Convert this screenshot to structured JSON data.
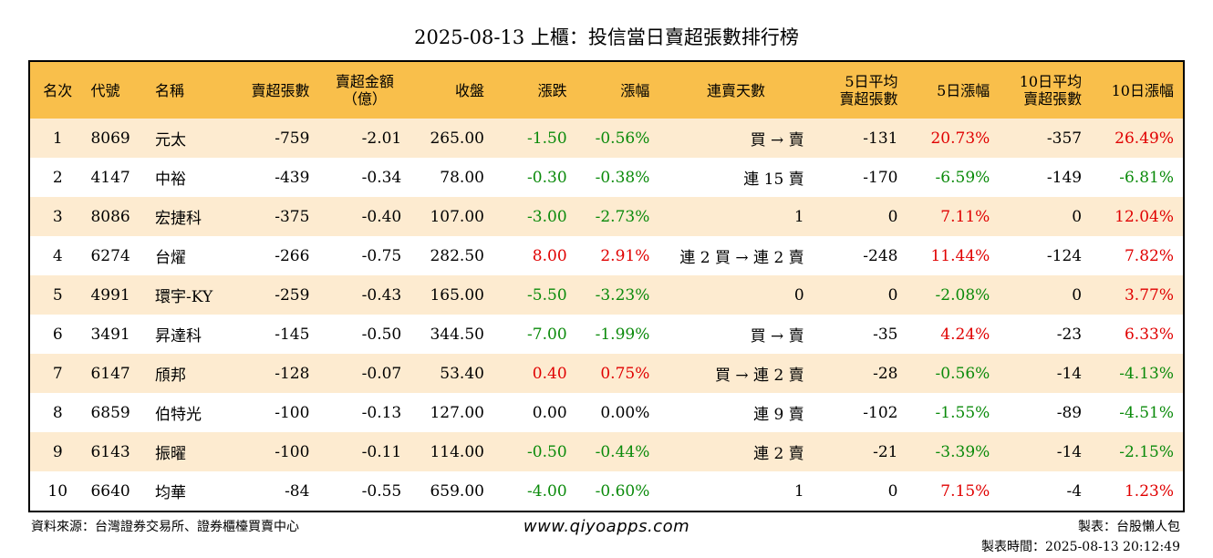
{
  "title": "2025-08-13 上櫃：投信當日賣超張數排行榜",
  "headers": [
    "名次",
    "代號",
    "名稱",
    "賣超張數",
    "賣超金額\n（億）",
    "收盤",
    "漲跌",
    "漲幅",
    "連賣天數",
    "5日平均\n賣超張數",
    "5日漲幅",
    "10日平均\n賣超張數",
    "10日漲幅"
  ],
  "rows": [
    [
      "1",
      "8069",
      "元太",
      "-759",
      "-2.01",
      "265.00",
      "-1.50",
      "-0.56%",
      "買 → 賣",
      "-131",
      "20.73%",
      "-357",
      "26.49%"
    ],
    [
      "2",
      "4147",
      "中裕",
      "-439",
      "-0.34",
      "78.00",
      "-0.30",
      "-0.38%",
      "連 15 賣",
      "-170",
      "-6.59%",
      "-149",
      "-6.81%"
    ],
    [
      "3",
      "8086",
      "宏捷科",
      "-375",
      "-0.40",
      "107.00",
      "-3.00",
      "-2.73%",
      "1",
      "0",
      "7.11%",
      "0",
      "12.04%"
    ],
    [
      "4",
      "6274",
      "台燿",
      "-266",
      "-0.75",
      "282.50",
      "8.00",
      "2.91%",
      "連 2 買 → 連 2 賣",
      "-248",
      "11.44%",
      "-124",
      "7.82%"
    ],
    [
      "5",
      "4991",
      "環宇-KY",
      "-259",
      "-0.43",
      "165.00",
      "-5.50",
      "-3.23%",
      "0",
      "0",
      "-2.08%",
      "0",
      "3.77%"
    ],
    [
      "6",
      "3491",
      "昇達科",
      "-145",
      "-0.50",
      "344.50",
      "-7.00",
      "-1.99%",
      "買 → 賣",
      "-35",
      "4.24%",
      "-23",
      "6.33%"
    ],
    [
      "7",
      "6147",
      "頎邦",
      "-128",
      "-0.07",
      "53.40",
      "0.40",
      "0.75%",
      "買 → 連 2 賣",
      "-28",
      "-0.56%",
      "-14",
      "-4.13%"
    ],
    [
      "8",
      "6859",
      "伯特光",
      "-100",
      "-0.13",
      "127.00",
      "0.00",
      "0.00%",
      "連 9 賣",
      "-102",
      "-1.55%",
      "-89",
      "-4.51%"
    ],
    [
      "9",
      "6143",
      "振曜",
      "-100",
      "-0.11",
      "114.00",
      "-0.50",
      "-0.44%",
      "連 2 賣",
      "-21",
      "-3.39%",
      "-14",
      "-2.15%"
    ],
    [
      "10",
      "6640",
      "均華",
      "-84",
      "-0.55",
      "659.00",
      "-4.00",
      "-0.60%",
      "1",
      "0",
      "7.15%",
      "-4",
      "1.23%"
    ]
  ],
  "footer": {
    "source": "資料來源：台灣證券交易所、證券櫃檯買賣中心",
    "website": "www.qiyoapps.com",
    "author": "製表：台股懶人包",
    "timestamp": "製表時間：2025-08-13 20:12:49"
  },
  "colors": {
    "header_bg": "#f9bf4b",
    "row_alt_bg": "#fdebd0",
    "positive": "#e00000",
    "negative": "#0a8a0a"
  }
}
